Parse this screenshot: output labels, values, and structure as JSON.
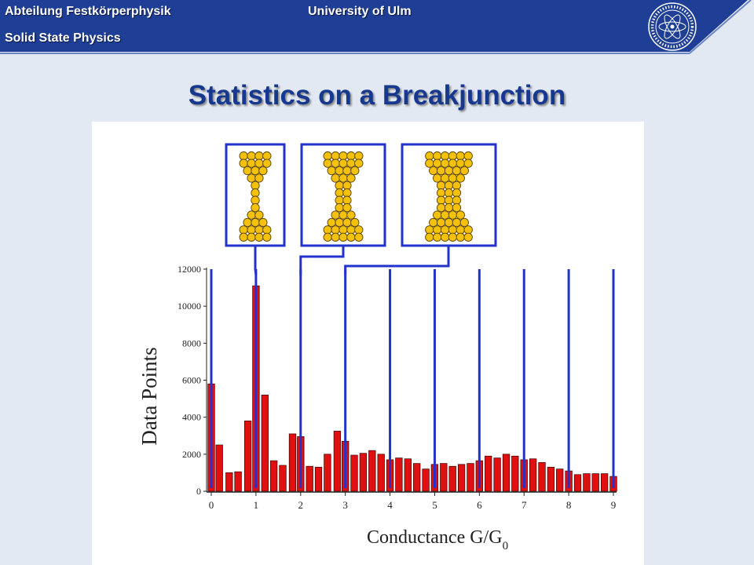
{
  "header": {
    "dept_de": "Abteilung Festkörperphysik",
    "dept_en": "Solid State Physics",
    "university": "University of Ulm",
    "brand_color": "#1f3f96"
  },
  "slide": {
    "title": "Statistics on a Breakjunction"
  },
  "logo": {
    "icon": "university-seal-icon"
  },
  "chart_data": {
    "type": "bar",
    "title": "",
    "xlabel": "Conductance G/G0",
    "xlabel_main": "Conductance G/G",
    "xlabel_sub": "0",
    "ylabel": "Data Points",
    "xlim": [
      0,
      9
    ],
    "ylim": [
      0,
      12000
    ],
    "x_ticks": [
      "0",
      "1",
      "2",
      "3",
      "4",
      "5",
      "6",
      "7",
      "8",
      "9"
    ],
    "y_ticks": [
      "0",
      "2000",
      "4000",
      "6000",
      "8000",
      "10000",
      "12000"
    ],
    "bar_color": "#e01010",
    "marker_color": "#2233cc",
    "marker_lines_x": [
      0,
      1,
      2,
      3,
      4,
      5,
      6,
      7,
      8,
      9
    ],
    "x": [
      0,
      0.18,
      0.4,
      0.6,
      0.82,
      1.0,
      1.2,
      1.4,
      1.6,
      1.82,
      2.0,
      2.2,
      2.4,
      2.6,
      2.82,
      3.0,
      3.2,
      3.4,
      3.6,
      3.8,
      4.0,
      4.2,
      4.4,
      4.6,
      4.8,
      5.0,
      5.2,
      5.4,
      5.6,
      5.8,
      6.0,
      6.2,
      6.4,
      6.6,
      6.8,
      7.0,
      7.2,
      7.4,
      7.6,
      7.8,
      8.0,
      8.2,
      8.4,
      8.6,
      8.8,
      9.0
    ],
    "values": [
      5800,
      2500,
      1000,
      1050,
      3800,
      11100,
      5200,
      1650,
      1400,
      3100,
      2950,
      1350,
      1300,
      2000,
      3250,
      2700,
      1950,
      2050,
      2200,
      2000,
      1700,
      1800,
      1750,
      1500,
      1200,
      1450,
      1500,
      1350,
      1450,
      1500,
      1650,
      1900,
      1800,
      2000,
      1900,
      1700,
      1750,
      1550,
      1300,
      1200,
      1100,
      900,
      950,
      950,
      950,
      800
    ],
    "insets": [
      {
        "name": "one-atom contact",
        "rows": [
          4,
          4,
          3,
          2,
          1,
          1,
          1,
          1,
          2,
          3,
          4,
          4
        ]
      },
      {
        "name": "two-atom contact",
        "rows": [
          5,
          5,
          4,
          3,
          2,
          2,
          2,
          2,
          3,
          4,
          5,
          5
        ]
      },
      {
        "name": "three-atom contact",
        "rows": [
          6,
          6,
          5,
          4,
          3,
          3,
          3,
          3,
          4,
          5,
          6,
          6
        ]
      }
    ]
  }
}
